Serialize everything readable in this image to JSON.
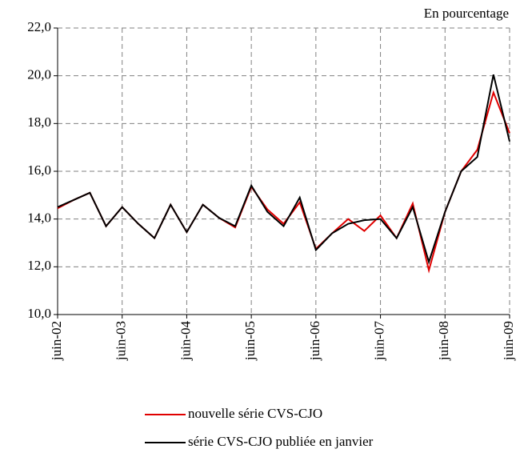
{
  "chart_data": {
    "type": "line",
    "annotation": "En pourcentage",
    "categories": [
      "juin-02",
      null,
      null,
      null,
      "juin-03",
      null,
      null,
      null,
      "juin-04",
      null,
      null,
      null,
      "juin-05",
      null,
      null,
      null,
      "juin-06",
      null,
      null,
      null,
      "juin-07",
      null,
      null,
      null,
      "juin-08",
      null,
      null,
      null,
      "juin-09"
    ],
    "series": [
      {
        "name": "nouvelle série CVS-CJO",
        "color": "#e00000",
        "values": [
          14.45,
          14.8,
          15.1,
          13.7,
          14.5,
          13.8,
          13.2,
          14.6,
          13.45,
          14.6,
          14.05,
          13.65,
          15.35,
          14.4,
          13.8,
          14.7,
          12.75,
          13.4,
          14.0,
          13.5,
          14.15,
          13.2,
          14.65,
          11.85,
          14.3,
          16.0,
          16.9,
          19.3,
          17.6
        ]
      },
      {
        "name": "série CVS-CJO publiée en janvier",
        "color": "#000000",
        "values": [
          14.5,
          14.8,
          15.1,
          13.7,
          14.5,
          13.8,
          13.2,
          14.6,
          13.45,
          14.6,
          14.05,
          13.7,
          15.4,
          14.3,
          13.7,
          14.9,
          12.7,
          13.4,
          13.8,
          13.95,
          14.0,
          13.2,
          14.5,
          12.2,
          14.3,
          16.0,
          16.6,
          20.05,
          17.25
        ]
      }
    ],
    "ylim": [
      10,
      22
    ],
    "yticks": [
      {
        "value": 10,
        "label": "10,0"
      },
      {
        "value": 12,
        "label": "12,0"
      },
      {
        "value": 14,
        "label": "14,0"
      },
      {
        "value": 16,
        "label": "16,0"
      },
      {
        "value": 18,
        "label": "18,0"
      },
      {
        "value": 20,
        "label": "20,0"
      },
      {
        "value": 22,
        "label": "22,0"
      }
    ],
    "grid": true
  }
}
